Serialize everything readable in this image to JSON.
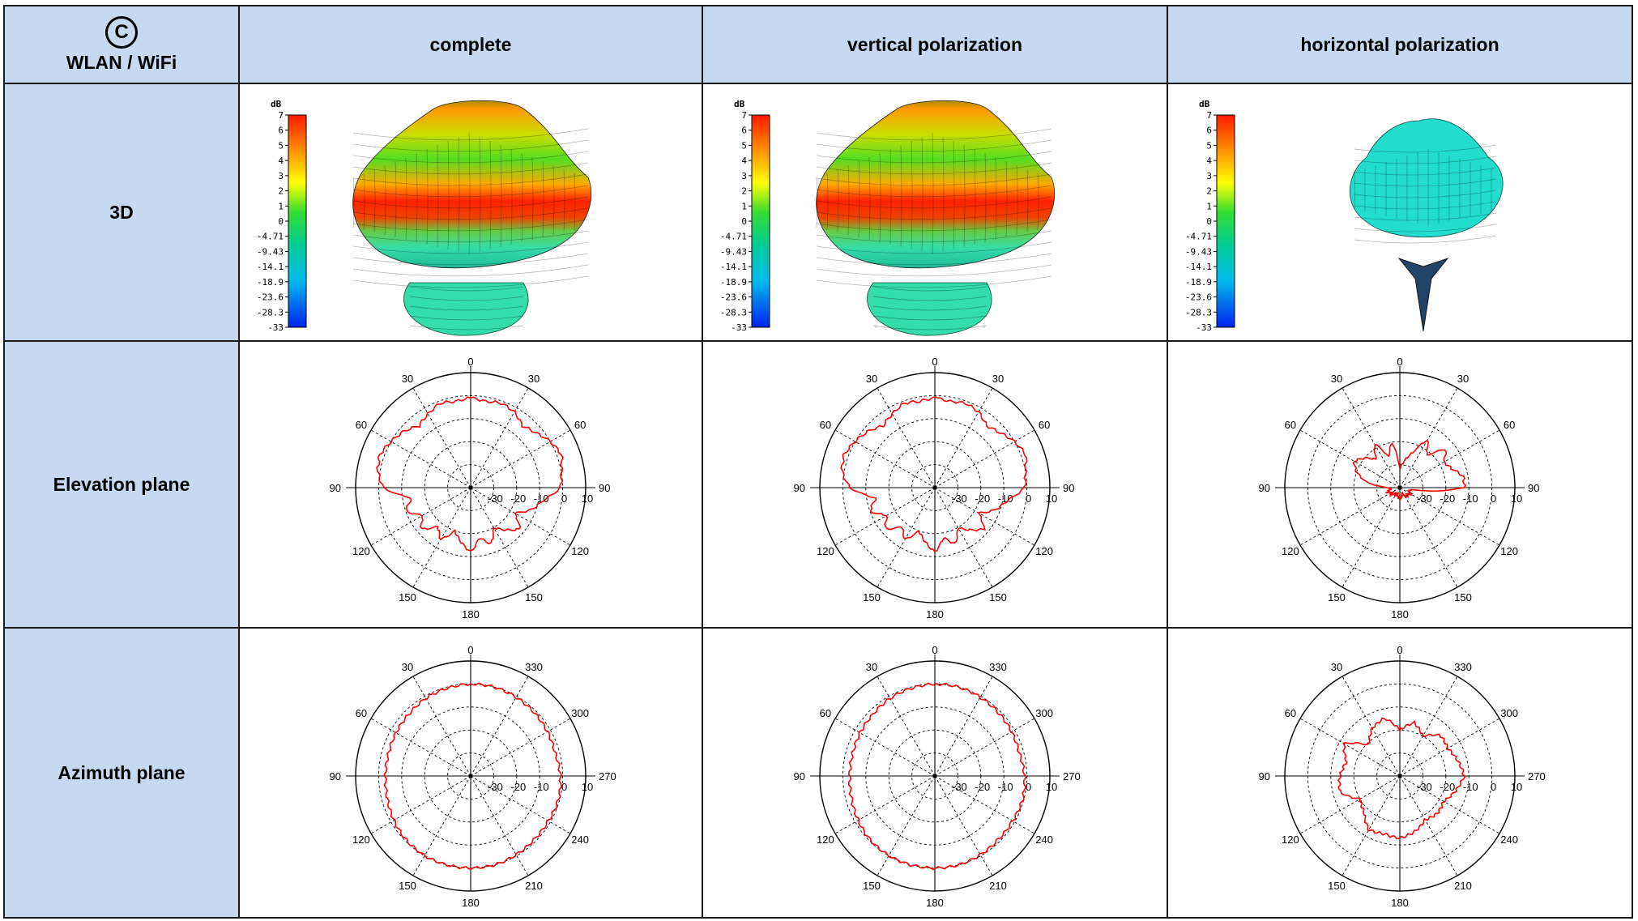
{
  "table": {
    "corner_symbol": "C",
    "corner_label": "WLAN / WiFi",
    "columns": [
      "complete",
      "vertical polarization",
      "horizontal polarization"
    ],
    "rows": [
      "3D",
      "Elevation plane",
      "Azimuth plane"
    ]
  },
  "colors": {
    "header_bg": "#c6d9f0",
    "trace": "#ff0000",
    "grid_line": "#000000"
  },
  "colorbar": {
    "unit": "dB",
    "ticks": [
      "7",
      "6",
      "5",
      "4",
      "3",
      "2",
      "1",
      "0",
      "-4.71",
      "-9.43",
      "-14.1",
      "-18.9",
      "-23.6",
      "-28.3",
      "-33"
    ]
  },
  "chart_data": [
    {
      "type": "polar",
      "plane": "elevation",
      "polarization": "complete",
      "angle_labels": [
        "0",
        "30",
        "60",
        "90",
        "120",
        "150",
        "180",
        "150",
        "120",
        "90",
        "60",
        "30"
      ],
      "radial_labels": [
        "-30",
        "-20",
        "-10",
        "0",
        "10"
      ],
      "rlim": [
        -40,
        10
      ],
      "angles": [
        0,
        10,
        20,
        30,
        40,
        50,
        60,
        70,
        80,
        90,
        100,
        110,
        120,
        130,
        140,
        150,
        160,
        170,
        180,
        190,
        200,
        210,
        220,
        230,
        240,
        250,
        260,
        270,
        280,
        290,
        300,
        310,
        320,
        330,
        340,
        350
      ],
      "values": [
        -1,
        -2,
        -1,
        -3,
        -5,
        -2,
        0,
        2,
        1,
        -2,
        -14,
        -10,
        -16,
        -12,
        -18,
        -14,
        -20,
        -16,
        -12,
        -18,
        -14,
        -20,
        -16,
        -12,
        -18,
        -12,
        -8,
        -1,
        0,
        2,
        0,
        -3,
        -5,
        -2,
        -1,
        -2
      ]
    },
    {
      "type": "polar",
      "plane": "elevation",
      "polarization": "vertical",
      "angle_labels": [
        "0",
        "30",
        "60",
        "90",
        "120",
        "150",
        "180",
        "150",
        "120",
        "90",
        "60",
        "30"
      ],
      "radial_labels": [
        "-30",
        "-20",
        "-10",
        "0",
        "10"
      ],
      "rlim": [
        -40,
        10
      ],
      "angles": [
        0,
        10,
        20,
        30,
        40,
        50,
        60,
        70,
        80,
        90,
        100,
        110,
        120,
        130,
        140,
        150,
        160,
        170,
        180,
        190,
        200,
        210,
        220,
        230,
        240,
        250,
        260,
        270,
        280,
        290,
        300,
        310,
        320,
        330,
        340,
        350
      ],
      "values": [
        -1,
        -2,
        -1,
        -3,
        -5,
        -2,
        0,
        2,
        1,
        -3,
        -14,
        -10,
        -16,
        -12,
        -18,
        -14,
        -20,
        -16,
        -12,
        -18,
        -14,
        -20,
        -16,
        -12,
        -18,
        -12,
        -8,
        -1,
        0,
        2,
        0,
        -3,
        -5,
        -2,
        -1,
        -2
      ]
    },
    {
      "type": "polar",
      "plane": "elevation",
      "polarization": "horizontal",
      "angle_labels": [
        "0",
        "30",
        "60",
        "90",
        "120",
        "150",
        "180",
        "150",
        "120",
        "90",
        "60",
        "30"
      ],
      "radial_labels": [
        "-30",
        "-20",
        "-10",
        "0",
        "10"
      ],
      "rlim": [
        -40,
        10
      ],
      "angles": [
        0,
        10,
        20,
        30,
        40,
        50,
        60,
        70,
        80,
        90,
        100,
        110,
        120,
        130,
        140,
        150,
        160,
        170,
        180,
        190,
        200,
        210,
        220,
        230,
        240,
        250,
        260,
        270,
        280,
        290,
        300,
        310,
        320,
        330,
        340,
        350
      ],
      "values": [
        -32,
        -20,
        -26,
        -18,
        -24,
        -20,
        -17,
        -20,
        -25,
        -35,
        -36,
        -34,
        -36,
        -35,
        -37,
        -36,
        -37,
        -36,
        -35,
        -36,
        -37,
        -36,
        -35,
        -36,
        -34,
        -36,
        -35,
        -12,
        -12,
        -16,
        -18,
        -14,
        -22,
        -16,
        -24,
        -28
      ]
    },
    {
      "type": "polar",
      "plane": "azimuth",
      "polarization": "complete",
      "angle_labels": [
        "0",
        "30",
        "60",
        "90",
        "120",
        "150",
        "180",
        "210",
        "240",
        "270",
        "300",
        "330"
      ],
      "radial_labels": [
        "-30",
        "-20",
        "-10",
        "0",
        "10"
      ],
      "rlim": [
        -40,
        10
      ],
      "angles": [
        0,
        15,
        30,
        45,
        60,
        75,
        90,
        105,
        120,
        135,
        150,
        165,
        180,
        195,
        210,
        225,
        240,
        255,
        270,
        285,
        300,
        315,
        330,
        345
      ],
      "values": [
        0,
        -0.5,
        -1,
        -2,
        -2.5,
        -3,
        -3,
        -2.5,
        -1.5,
        -0.5,
        0,
        0,
        0,
        0,
        -0.5,
        -1,
        -1,
        -0.5,
        -1,
        -2,
        -1.5,
        -1,
        -0.5,
        0
      ]
    },
    {
      "type": "polar",
      "plane": "azimuth",
      "polarization": "vertical",
      "angle_labels": [
        "0",
        "30",
        "60",
        "90",
        "120",
        "150",
        "180",
        "210",
        "240",
        "270",
        "300",
        "330"
      ],
      "radial_labels": [
        "-30",
        "-20",
        "-10",
        "0",
        "10"
      ],
      "rlim": [
        -40,
        10
      ],
      "angles": [
        0,
        15,
        30,
        45,
        60,
        75,
        90,
        105,
        120,
        135,
        150,
        165,
        180,
        195,
        210,
        225,
        240,
        255,
        270,
        285,
        300,
        315,
        330,
        345
      ],
      "values": [
        0,
        -0.5,
        -1,
        -2,
        -2.5,
        -3,
        -3,
        -2.5,
        -1.5,
        -0.5,
        0,
        0,
        0,
        0,
        -0.5,
        -1,
        -1,
        -0.5,
        -1,
        -2,
        -1.5,
        -1,
        -0.5,
        0
      ]
    },
    {
      "type": "polar",
      "plane": "azimuth",
      "polarization": "horizontal",
      "angle_labels": [
        "0",
        "30",
        "60",
        "90",
        "120",
        "150",
        "180",
        "210",
        "240",
        "270",
        "300",
        "330"
      ],
      "radial_labels": [
        "-30",
        "-20",
        "-10",
        "0",
        "10"
      ],
      "rlim": [
        -40,
        10
      ],
      "angles": [
        0,
        15,
        30,
        45,
        60,
        75,
        90,
        105,
        120,
        135,
        150,
        165,
        180,
        195,
        210,
        225,
        240,
        255,
        270,
        285,
        300,
        315,
        330,
        345
      ],
      "values": [
        -20,
        -14,
        -16,
        -21,
        -12,
        -16,
        -14,
        -13,
        -20,
        -18,
        -13,
        -14,
        -13,
        -15,
        -18,
        -17,
        -18,
        -15,
        -12,
        -14,
        -16,
        -15,
        -20,
        -16
      ]
    }
  ]
}
